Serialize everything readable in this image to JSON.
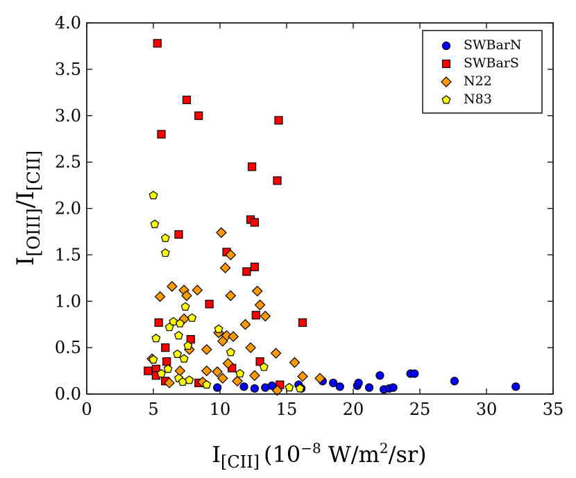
{
  "chart_data": {
    "type": "scatter",
    "title": "",
    "xlabel": {
      "main": "I",
      "sub": "[CII]",
      "units_prefix": "(10",
      "units_exp": "−8",
      "units_mid": " W/m",
      "units_exp2": "2",
      "units_suffix": "/sr)"
    },
    "ylabel": {
      "main1": "I",
      "sub1": "[OIII]",
      "sep": "/I",
      "sub2": "[CII]"
    },
    "xlim": [
      0,
      35
    ],
    "ylim": [
      0,
      4
    ],
    "xticks": [
      0,
      5,
      10,
      15,
      20,
      25,
      30,
      35
    ],
    "xtick_labels": [
      "0",
      "5",
      "10",
      "15",
      "20",
      "25",
      "30",
      "35"
    ],
    "yticks": [
      0,
      0.5,
      1,
      1.5,
      2,
      2.5,
      3,
      3.5,
      4
    ],
    "ytick_labels": [
      "0.0",
      "0.5",
      "1.0",
      "1.5",
      "2.0",
      "2.5",
      "3.0",
      "3.5",
      "4.0"
    ],
    "legend_position": "top-right",
    "series": [
      {
        "name": "SWBarN",
        "marker": "circle",
        "color": "#0000ff",
        "points": [
          [
            9.8,
            0.07
          ],
          [
            11.8,
            0.08
          ],
          [
            12.6,
            0.06
          ],
          [
            13.4,
            0.07
          ],
          [
            13.9,
            0.09
          ],
          [
            15.9,
            0.1
          ],
          [
            16.1,
            0.06
          ],
          [
            17.7,
            0.14
          ],
          [
            18.5,
            0.12
          ],
          [
            19.0,
            0.08
          ],
          [
            20.3,
            0.09
          ],
          [
            20.4,
            0.12
          ],
          [
            21.2,
            0.07
          ],
          [
            22.0,
            0.2
          ],
          [
            22.3,
            0.05
          ],
          [
            22.7,
            0.06
          ],
          [
            23.0,
            0.07
          ],
          [
            24.3,
            0.22
          ],
          [
            24.6,
            0.22
          ],
          [
            27.6,
            0.14
          ],
          [
            32.2,
            0.08
          ]
        ]
      },
      {
        "name": "SWBarS",
        "marker": "square",
        "color": "#ff0000",
        "points": [
          [
            5.3,
            3.78
          ],
          [
            5.6,
            2.8
          ],
          [
            7.5,
            3.17
          ],
          [
            8.4,
            3.0
          ],
          [
            14.4,
            2.95
          ],
          [
            12.4,
            2.45
          ],
          [
            14.3,
            2.3
          ],
          [
            12.3,
            1.88
          ],
          [
            12.6,
            1.85
          ],
          [
            6.9,
            1.72
          ],
          [
            10.5,
            1.53
          ],
          [
            12.0,
            1.32
          ],
          [
            12.6,
            1.37
          ],
          [
            9.2,
            0.97
          ],
          [
            5.4,
            0.77
          ],
          [
            12.7,
            0.85
          ],
          [
            16.2,
            0.77
          ],
          [
            7.8,
            0.59
          ],
          [
            5.9,
            0.5
          ],
          [
            6.0,
            0.35
          ],
          [
            13.0,
            0.35
          ],
          [
            10.9,
            0.28
          ],
          [
            5.2,
            0.27
          ],
          [
            4.6,
            0.25
          ],
          [
            5.2,
            0.2
          ],
          [
            5.9,
            0.14
          ],
          [
            8.4,
            0.12
          ],
          [
            14.5,
            0.1
          ]
        ]
      },
      {
        "name": "N22",
        "marker": "diamond",
        "color": "#ff9900",
        "points": [
          [
            10.1,
            1.74
          ],
          [
            10.8,
            1.5
          ],
          [
            10.4,
            1.36
          ],
          [
            6.4,
            1.16
          ],
          [
            8.3,
            1.12
          ],
          [
            5.5,
            1.05
          ],
          [
            7.3,
            1.12
          ],
          [
            7.5,
            1.06
          ],
          [
            10.8,
            1.06
          ],
          [
            12.8,
            1.11
          ],
          [
            13.0,
            0.96
          ],
          [
            13.4,
            0.84
          ],
          [
            7.3,
            0.81
          ],
          [
            11.9,
            0.75
          ],
          [
            9.9,
            0.66
          ],
          [
            10.5,
            0.63
          ],
          [
            11.0,
            0.62
          ],
          [
            10.2,
            0.57
          ],
          [
            12.3,
            0.5
          ],
          [
            9.0,
            0.48
          ],
          [
            7.7,
            0.48
          ],
          [
            14.2,
            0.44
          ],
          [
            4.9,
            0.38
          ],
          [
            10.6,
            0.33
          ],
          [
            15.6,
            0.34
          ],
          [
            7.0,
            0.25
          ],
          [
            9.0,
            0.25
          ],
          [
            9.8,
            0.24
          ],
          [
            12.6,
            0.2
          ],
          [
            16.2,
            0.19
          ],
          [
            10.2,
            0.17
          ],
          [
            11.3,
            0.14
          ],
          [
            8.7,
            0.13
          ],
          [
            17.5,
            0.17
          ],
          [
            6.2,
            0.12
          ],
          [
            14.3,
            0.04
          ]
        ]
      },
      {
        "name": "N83",
        "marker": "pentagon",
        "color": "#ffff00",
        "points": [
          [
            5.0,
            2.14
          ],
          [
            5.1,
            1.83
          ],
          [
            5.9,
            1.68
          ],
          [
            5.9,
            1.52
          ],
          [
            7.4,
            0.94
          ],
          [
            7.9,
            0.82
          ],
          [
            6.5,
            0.78
          ],
          [
            7.0,
            0.76
          ],
          [
            6.2,
            0.72
          ],
          [
            9.9,
            0.7
          ],
          [
            5.2,
            0.6
          ],
          [
            6.9,
            0.63
          ],
          [
            7.6,
            0.52
          ],
          [
            10.8,
            0.45
          ],
          [
            6.8,
            0.43
          ],
          [
            7.3,
            0.38
          ],
          [
            5.0,
            0.37
          ],
          [
            6.1,
            0.27
          ],
          [
            13.3,
            0.29
          ],
          [
            5.6,
            0.22
          ],
          [
            11.5,
            0.22
          ],
          [
            6.9,
            0.17
          ],
          [
            7.2,
            0.13
          ],
          [
            7.7,
            0.15
          ],
          [
            15.2,
            0.07
          ],
          [
            16.0,
            0.06
          ],
          [
            9.0,
            0.1
          ]
        ]
      }
    ]
  }
}
